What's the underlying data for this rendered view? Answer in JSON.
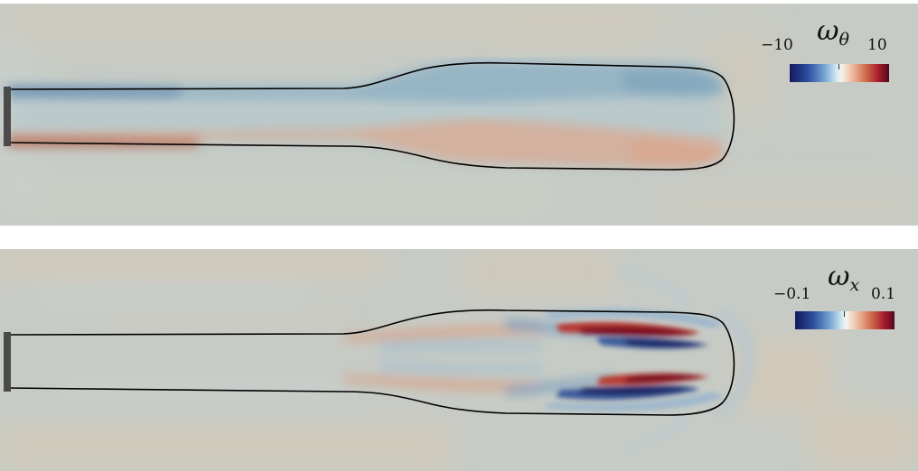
{
  "figure": {
    "panels": [
      {
        "symbol": "ω",
        "subscript": "θ",
        "colorbar_min": "−10",
        "colorbar_max": "10"
      },
      {
        "symbol": "ω",
        "subscript": "x",
        "colorbar_min": "−0.1",
        "colorbar_max": "0.1"
      }
    ],
    "colors": {
      "background": "#c7cbc5",
      "negative": "#15185e",
      "positive": "#4f0a1e",
      "interface_line": "#000000"
    }
  }
}
